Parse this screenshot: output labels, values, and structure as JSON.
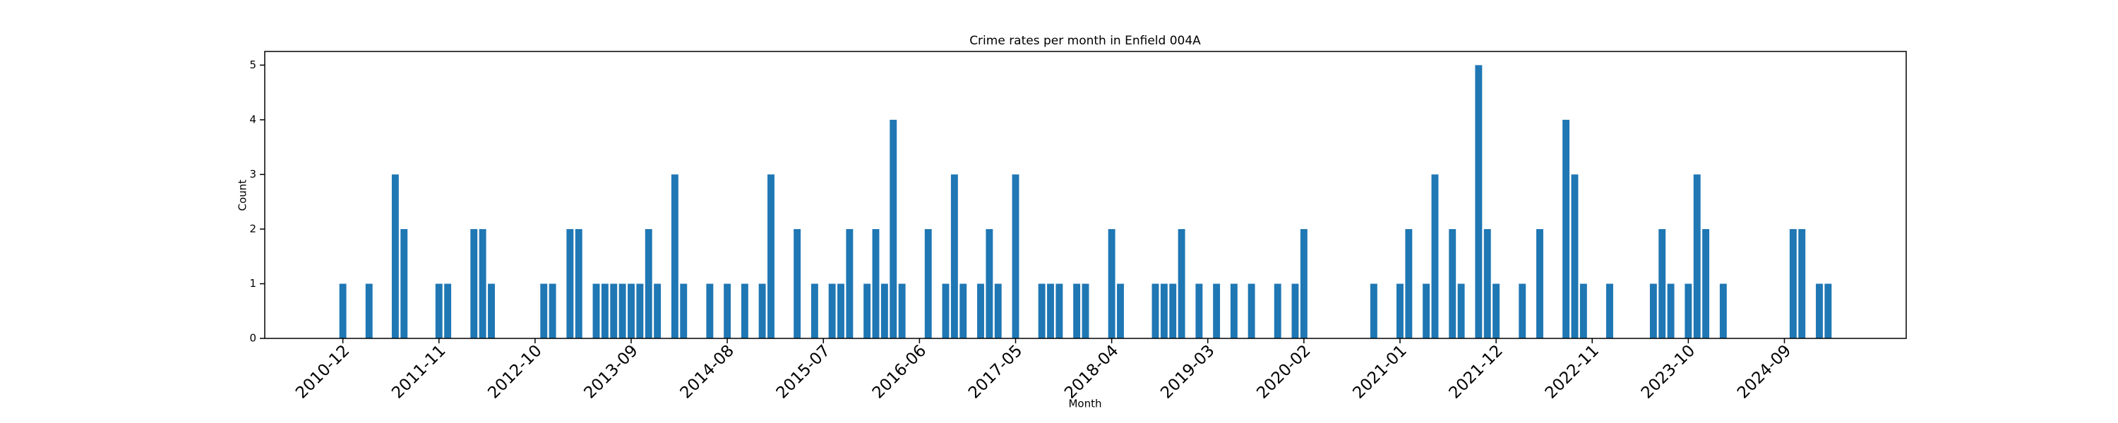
{
  "chart_data": {
    "type": "bar",
    "title": "Crime rates per month in Enfield 004A",
    "xlabel": "Month",
    "ylabel": "Count",
    "color": "#1f77b4",
    "categories": [
      "2010-12",
      null,
      null,
      null,
      null,
      null,
      null,
      null,
      null,
      null,
      null,
      "2011-11",
      null,
      null,
      null,
      null,
      null,
      null,
      null,
      null,
      null,
      null,
      "2012-10",
      null,
      null,
      null,
      null,
      null,
      null,
      null,
      null,
      null,
      null,
      "2013-09",
      null,
      null,
      null,
      null,
      null,
      null,
      null,
      null,
      null,
      null,
      "2014-08",
      null,
      null,
      null,
      null,
      null,
      null,
      null,
      null,
      null,
      null,
      "2015-07",
      null,
      null,
      null,
      null,
      null,
      null,
      null,
      null,
      null,
      null,
      "2016-06",
      null,
      null,
      null,
      null,
      null,
      null,
      null,
      null,
      null,
      null,
      "2017-05",
      null,
      null,
      null,
      null,
      null,
      null,
      null,
      null,
      null,
      null,
      "2018-04",
      null,
      null,
      null,
      null,
      null,
      null,
      null,
      null,
      null,
      null,
      "2019-03",
      null,
      null,
      null,
      null,
      null,
      null,
      null,
      null,
      null,
      null,
      "2020-02",
      null,
      null,
      null,
      null,
      null,
      null,
      null,
      null,
      null,
      null,
      "2021-01",
      null,
      null,
      null,
      null,
      null,
      null,
      null,
      null,
      null,
      null,
      "2021-12",
      null,
      null,
      null,
      null,
      null,
      null,
      null,
      null,
      null,
      null,
      "2022-11",
      null,
      null,
      null,
      null,
      null,
      null,
      null,
      null,
      null,
      null,
      "2023-10",
      null,
      null,
      null,
      null,
      null,
      null,
      null,
      null,
      null,
      null,
      "2024-09",
      null,
      null,
      null,
      null,
      null
    ],
    "values": [
      1,
      0,
      0,
      1,
      0,
      0,
      3,
      2,
      0,
      0,
      0,
      1,
      1,
      0,
      0,
      2,
      2,
      1,
      0,
      0,
      0,
      0,
      0,
      1,
      1,
      0,
      2,
      2,
      0,
      1,
      1,
      1,
      1,
      1,
      1,
      2,
      1,
      0,
      3,
      1,
      0,
      0,
      1,
      0,
      1,
      0,
      1,
      0,
      1,
      3,
      0,
      0,
      2,
      0,
      1,
      0,
      1,
      1,
      2,
      0,
      1,
      2,
      1,
      4,
      1,
      0,
      0,
      2,
      0,
      1,
      3,
      1,
      0,
      1,
      2,
      1,
      0,
      3,
      0,
      0,
      1,
      1,
      1,
      0,
      1,
      1,
      0,
      0,
      2,
      1,
      0,
      0,
      0,
      1,
      1,
      1,
      2,
      0,
      1,
      0,
      1,
      0,
      1,
      0,
      1,
      0,
      0,
      1,
      0,
      1,
      2,
      0,
      0,
      0,
      0,
      0,
      0,
      0,
      1,
      0,
      0,
      1,
      2,
      0,
      1,
      3,
      0,
      2,
      1,
      0,
      5,
      2,
      1,
      0,
      0,
      1,
      0,
      2,
      0,
      0,
      4,
      3,
      1,
      0,
      0,
      1,
      0,
      0,
      0,
      0,
      1,
      2,
      1,
      0,
      1,
      3,
      2,
      0,
      1,
      0,
      0,
      0,
      0,
      0,
      0,
      0,
      2,
      2,
      0,
      1,
      1
    ],
    "ylim": [
      0,
      5.25
    ],
    "yticks": [
      0,
      1,
      2,
      3,
      4,
      5
    ]
  }
}
